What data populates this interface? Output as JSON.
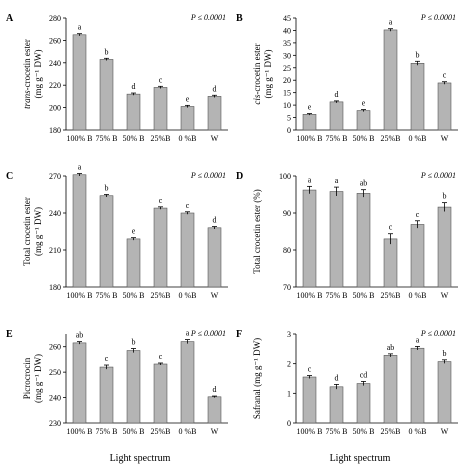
{
  "figure": {
    "xlabel_bottom": "Light spectrum"
  },
  "colors": {
    "bar_fill": "#b4b4b4",
    "bar_stroke": "#555555",
    "axis": "#000000"
  },
  "chart_data": [
    {
      "panel": "A",
      "type": "bar",
      "categories": [
        "100% B",
        "75% B",
        "50% B",
        "25%B",
        "0 %B",
        "W"
      ],
      "values": [
        265,
        243,
        212,
        218,
        201,
        210
      ],
      "errors": [
        1,
        1,
        1,
        1,
        1,
        1
      ],
      "letters": [
        "a",
        "b",
        "d",
        "c",
        "e",
        "d"
      ],
      "ylabel_italic": "trans-",
      "ylabel_main": "crocetin ester",
      "ylabel_unit": "(mg g⁻¹ DW)",
      "ylim": [
        180,
        280
      ],
      "yticks": [
        180,
        200,
        220,
        240,
        260,
        280
      ],
      "pval": "P ≤ 0.0001",
      "show_xlabels": true
    },
    {
      "panel": "B",
      "type": "bar",
      "categories": [
        "100% B",
        "75% B",
        "50% B",
        "25%B",
        "0 %B",
        "W"
      ],
      "values": [
        6.3,
        11.3,
        7.8,
        40.2,
        26.8,
        18.9
      ],
      "errors": [
        0.3,
        0.4,
        0.4,
        0.5,
        0.8,
        0.5
      ],
      "letters": [
        "e",
        "d",
        "e",
        "a",
        "b",
        "c"
      ],
      "ylabel_italic": "cis-",
      "ylabel_main": "crocetin ester",
      "ylabel_unit": "(mg g⁻¹ DW)",
      "ylim": [
        0,
        45
      ],
      "yticks": [
        0,
        5,
        10,
        15,
        20,
        25,
        30,
        35,
        40,
        45
      ],
      "pval": "P ≤ 0.0001",
      "show_xlabels": true
    },
    {
      "panel": "C",
      "type": "bar",
      "categories": [
        "100% B",
        "75% B",
        "50% B",
        "25%B",
        "0 %B",
        "W"
      ],
      "values": [
        271,
        254,
        219,
        244,
        240,
        228
      ],
      "errors": [
        1,
        1,
        1,
        1,
        1,
        1
      ],
      "letters": [
        "a",
        "b",
        "e",
        "c",
        "c",
        "d"
      ],
      "ylabel_italic": "",
      "ylabel_main": "Total crocetin ester",
      "ylabel_unit": "(mg g⁻¹ DW)",
      "ylim": [
        180,
        270
      ],
      "yticks": [
        180,
        210,
        240,
        270
      ],
      "pval": "P ≤ 0.0001",
      "show_xlabels": true
    },
    {
      "panel": "D",
      "type": "bar",
      "categories": [
        "100% B",
        "75% B",
        "50% B",
        "25%B",
        "0 %B",
        "W"
      ],
      "values": [
        96.2,
        95.8,
        95.3,
        83.0,
        86.9,
        91.6
      ],
      "errors": [
        1.0,
        1.2,
        1.0,
        1.4,
        1.0,
        1.2
      ],
      "letters": [
        "a",
        "a",
        "ab",
        "c",
        "c",
        "b"
      ],
      "ylabel_italic": "",
      "ylabel_main": "Total crocetin ester (%)",
      "ylabel_unit": "",
      "ylim": [
        70,
        100
      ],
      "yticks": [
        70,
        80,
        90,
        100
      ],
      "pval": "P ≤ 0.0001",
      "show_xlabels": true
    },
    {
      "panel": "E",
      "type": "bar",
      "categories": [
        "100% B",
        "75% B",
        "50% B",
        "25%B",
        "0 %B",
        "W"
      ],
      "values": [
        261.5,
        252.0,
        258.5,
        253.2,
        262.0,
        240.3
      ],
      "errors": [
        0.5,
        0.8,
        0.8,
        0.4,
        0.8,
        0.3
      ],
      "letters": [
        "ab",
        "c",
        "b",
        "c",
        "a",
        "d"
      ],
      "ylabel_italic": "",
      "ylabel_main": "Picrocrocin",
      "ylabel_unit": "(mg g⁻¹ DW)",
      "ylim": [
        230,
        265
      ],
      "yticks": [
        230,
        240,
        250,
        260
      ],
      "pval": "P ≤ 0.0001",
      "show_xlabels": true
    },
    {
      "panel": "F",
      "type": "bar",
      "categories": [
        "100% B",
        "75% B",
        "50% B",
        "25%B",
        "0 %B",
        "W"
      ],
      "values": [
        1.55,
        1.22,
        1.33,
        2.28,
        2.52,
        2.07
      ],
      "errors": [
        0.05,
        0.08,
        0.07,
        0.05,
        0.06,
        0.06
      ],
      "letters": [
        "c",
        "d",
        "cd",
        "ab",
        "a",
        "b"
      ],
      "ylabel_italic": "",
      "ylabel_main": "Safranal (mg g⁻¹ DW)",
      "ylabel_unit": "",
      "ylim": [
        0,
        3
      ],
      "yticks": [
        0,
        1,
        2,
        3
      ],
      "pval": "P ≤ 0.0001",
      "show_xlabels": true
    }
  ]
}
